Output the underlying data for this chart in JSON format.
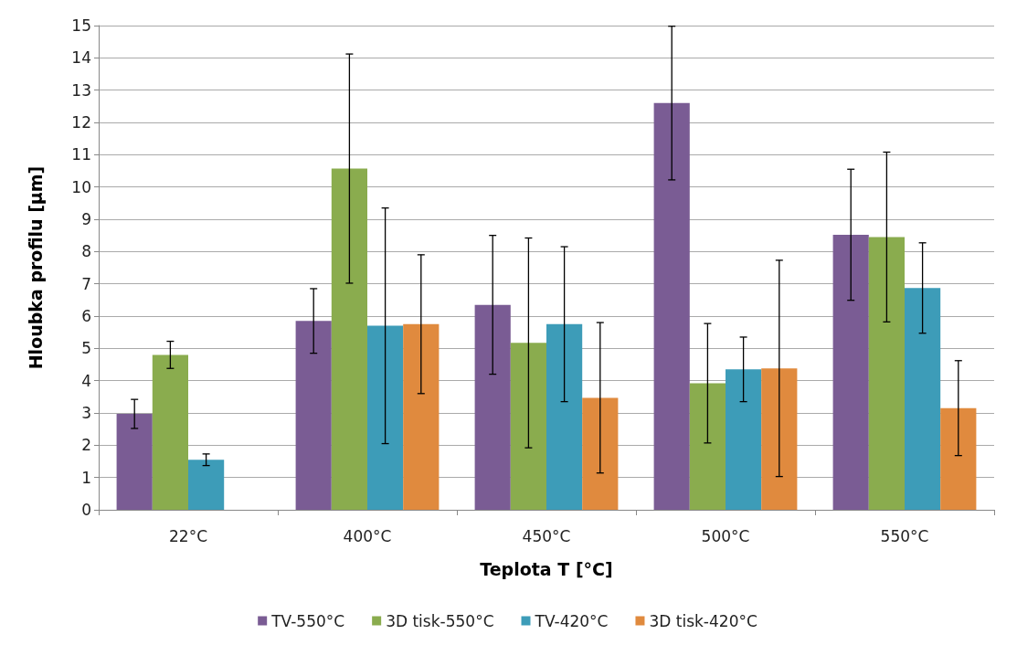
{
  "chart_data": {
    "type": "bar",
    "xlabel": "Teplota T [°C]",
    "ylabel": "Hloubka profilu [µm]",
    "categories": [
      "22°C",
      "400°C",
      "450°C",
      "500°C",
      "550°C"
    ],
    "series": [
      {
        "name": "TV-550°C",
        "color": "#7a5c94",
        "values": [
          2.97,
          5.85,
          6.35,
          12.6,
          8.52
        ],
        "errors": [
          0.45,
          1.0,
          2.15,
          2.38,
          2.03
        ]
      },
      {
        "name": "3D tisk-550°C",
        "color": "#8aac4e",
        "values": [
          4.8,
          10.57,
          5.17,
          3.92,
          8.45
        ],
        "errors": [
          0.42,
          3.55,
          3.25,
          1.85,
          2.63
        ]
      },
      {
        "name": "TV-420°C",
        "color": "#3d9cb8",
        "values": [
          1.55,
          5.7,
          5.75,
          4.35,
          6.87
        ],
        "errors": [
          0.18,
          3.65,
          2.4,
          1.0,
          1.4
        ]
      },
      {
        "name": "3D tisk-420°C",
        "color": "#e08a3e",
        "values": [
          null,
          5.75,
          3.47,
          4.38,
          3.15
        ],
        "errors": [
          null,
          2.15,
          2.33,
          3.35,
          1.47
        ]
      }
    ],
    "ylim": [
      0,
      15
    ],
    "yticks": [
      0,
      1,
      2,
      3,
      4,
      5,
      6,
      7,
      8,
      9,
      10,
      11,
      12,
      13,
      14,
      15
    ],
    "grid": "y",
    "legend": "bottom"
  }
}
